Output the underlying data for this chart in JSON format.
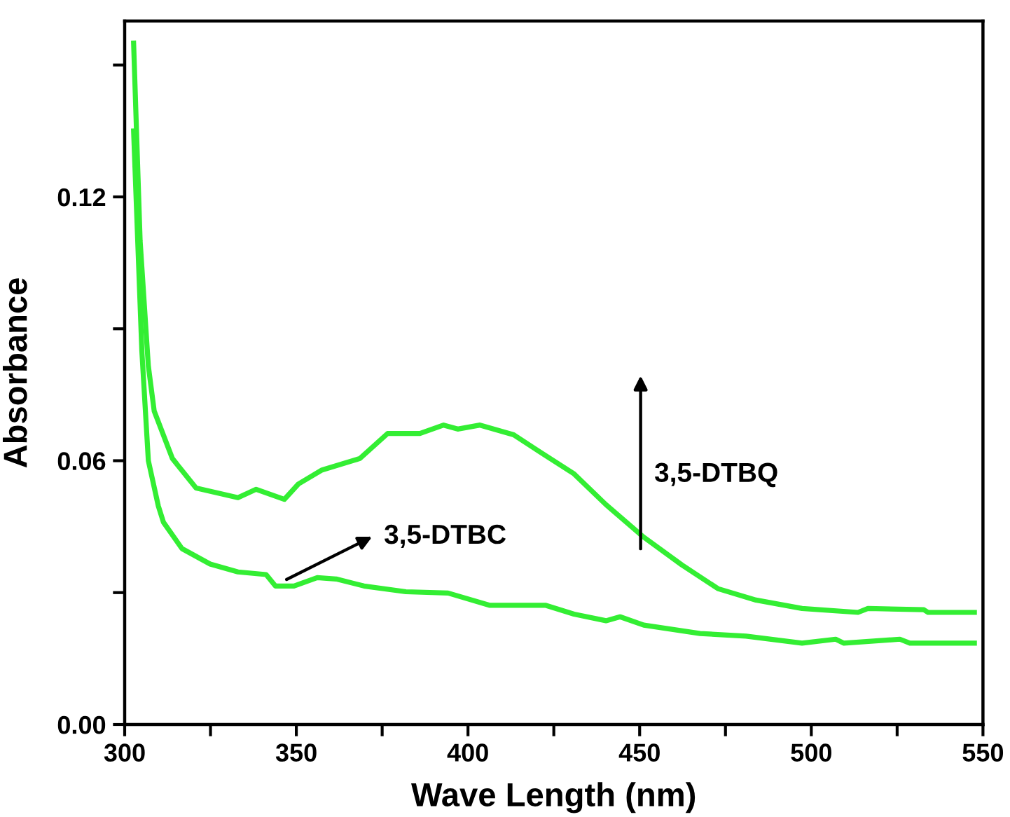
{
  "chart_data": {
    "type": "line",
    "xlabel": "Wave Length (nm)",
    "ylabel": "Absorbance",
    "xlim": [
      300,
      550
    ],
    "ylim": [
      0,
      0.16
    ],
    "xticks": [
      300,
      {
        "value": 325,
        "label": null
      },
      350,
      {
        "value": 375,
        "label": null
      },
      400,
      {
        "value": 425,
        "label": null
      },
      450,
      {
        "value": 475,
        "label": null
      },
      500,
      {
        "value": 525,
        "label": null
      },
      550
    ],
    "yticks": [
      {
        "value": 0,
        "label": "0.00"
      },
      {
        "value": 0.03,
        "label": null
      },
      0.06,
      {
        "value": 0.09,
        "label": null
      },
      0.12,
      {
        "value": 0.15,
        "label": null
      }
    ],
    "grid": false,
    "marker": "none",
    "line_style": "solid",
    "series": [
      {
        "color": "#33ee33",
        "x": [
          302.6,
          304.5,
          306.9,
          308.6,
          313.9,
          320.8,
          333.0,
          338.3,
          346.5,
          350.6,
          357.5,
          368.5,
          376.6,
          386.0,
          392.9,
          397.0,
          403.5,
          413.3,
          422.7,
          430.9,
          440.2,
          451.2,
          462.3,
          472.8,
          483.9,
          497.3,
          513.6,
          516.5,
          532.8,
          534.0,
          547.5
        ],
        "values": [
          0.155,
          0.11,
          0.0815,
          0.0713,
          0.0605,
          0.0538,
          0.0516,
          0.0535,
          0.0512,
          0.0547,
          0.0579,
          0.0605,
          0.0662,
          0.0662,
          0.0681,
          0.0672,
          0.0681,
          0.0659,
          0.0611,
          0.057,
          0.05,
          0.0426,
          0.0363,
          0.0309,
          0.0283,
          0.0264,
          0.0255,
          0.0264,
          0.0261,
          0.0255,
          0.0255
        ]
      },
      {
        "color": "#33ee33",
        "x": [
          302.6,
          305.0,
          306.9,
          309.8,
          311.3,
          316.7,
          324.9,
          333.0,
          341.2,
          343.9,
          349.3,
          356.1,
          361.6,
          369.7,
          381.9,
          394.2,
          406.4,
          422.7,
          430.9,
          440.2,
          444.3,
          451.2,
          467.6,
          481.0,
          497.3,
          507.1,
          509.5,
          525.8,
          528.7,
          547.5
        ],
        "values": [
          0.135,
          0.085,
          0.06,
          0.0497,
          0.046,
          0.04,
          0.0365,
          0.0347,
          0.0341,
          0.0315,
          0.0315,
          0.0334,
          0.0331,
          0.0315,
          0.0302,
          0.0299,
          0.0271,
          0.0271,
          0.0251,
          0.0236,
          0.0245,
          0.0226,
          0.0207,
          0.0201,
          0.0185,
          0.0194,
          0.0185,
          0.0194,
          0.0185,
          0.0185
        ]
      }
    ],
    "annotations": [
      "3,5-DTBC",
      "3,5-DTBQ"
    ]
  }
}
